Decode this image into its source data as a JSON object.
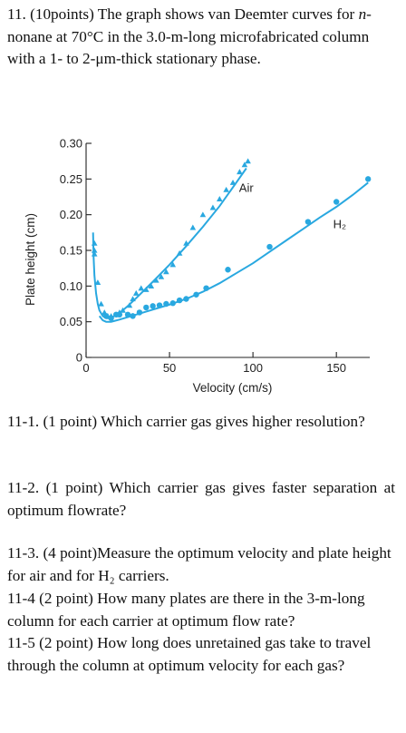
{
  "question": {
    "intro_a": "11. (10points) The graph shows van Deemter curves for ",
    "intro_n": "n",
    "intro_b": "-nonane at 70°C in the 3.0-m-long microfabricated column with a 1- to 2-μm-thick stationary phase.",
    "q1": "11-1. (1 point) Which carrier gas gives higher resolution?",
    "q2": "11-2. (1 point) Which carrier gas gives faster separation at optimum flowrate?",
    "q3": "11-3. (4 point)Measure the optimum velocity and plate height for air and for H₂ carriers.",
    "q4": "11-4 (2 point) How many plates are there in the 3-m-long column for each carrier at optimum flow rate?",
    "q5": "11-5 (2 point) How long does unretained gas take to travel through the column at optimum velocity for each gas?"
  },
  "chart_data": {
    "type": "scatter",
    "xlabel": "Velocity (cm/s)",
    "ylabel": "Plate height (cm)",
    "xlim": [
      0,
      170
    ],
    "ylim": [
      0,
      0.3
    ],
    "xticks": [
      0,
      50,
      100,
      150
    ],
    "yticks": [
      0,
      0.05,
      0.1,
      0.15,
      0.2,
      0.25,
      0.3
    ],
    "ytick_labels": [
      "0",
      "0.05",
      "0.10",
      "0.15",
      "0.20",
      "0.25",
      "0.30"
    ],
    "color": "#29a8e0",
    "series": [
      {
        "name": "Air",
        "marker": "triangle",
        "points": [
          [
            5,
            0.16
          ],
          [
            5,
            0.15
          ],
          [
            5,
            0.145
          ],
          [
            7,
            0.105
          ],
          [
            9,
            0.075
          ],
          [
            11,
            0.063
          ],
          [
            13,
            0.058
          ],
          [
            15,
            0.058
          ],
          [
            18,
            0.06
          ],
          [
            20,
            0.063
          ],
          [
            22,
            0.066
          ],
          [
            26,
            0.073
          ],
          [
            28,
            0.082
          ],
          [
            30,
            0.09
          ],
          [
            33,
            0.097
          ],
          [
            36,
            0.095
          ],
          [
            39,
            0.1
          ],
          [
            42,
            0.108
          ],
          [
            45,
            0.113
          ],
          [
            48,
            0.12
          ],
          [
            52,
            0.13
          ],
          [
            56,
            0.146
          ],
          [
            60,
            0.16
          ],
          [
            64,
            0.182
          ],
          [
            70,
            0.2
          ],
          [
            76,
            0.21
          ],
          [
            80,
            0.222
          ],
          [
            84,
            0.235
          ],
          [
            88,
            0.245
          ],
          [
            92,
            0.26
          ],
          [
            95,
            0.27
          ],
          [
            97,
            0.275
          ]
        ],
        "curve": [
          [
            4.2,
            0.175
          ],
          [
            4.5,
            0.14
          ],
          [
            5,
            0.115
          ],
          [
            6,
            0.09
          ],
          [
            7,
            0.075
          ],
          [
            8,
            0.066
          ],
          [
            10,
            0.058
          ],
          [
            12,
            0.055
          ],
          [
            14,
            0.055
          ],
          [
            16,
            0.057
          ],
          [
            20,
            0.062
          ],
          [
            25,
            0.072
          ],
          [
            30,
            0.083
          ],
          [
            40,
            0.106
          ],
          [
            50,
            0.13
          ],
          [
            60,
            0.156
          ],
          [
            70,
            0.183
          ],
          [
            80,
            0.212
          ],
          [
            90,
            0.245
          ],
          [
            96,
            0.265
          ]
        ]
      },
      {
        "name": "H₂",
        "marker": "circle",
        "points": [
          [
            12,
            0.058
          ],
          [
            15,
            0.055
          ],
          [
            18,
            0.06
          ],
          [
            20,
            0.06
          ],
          [
            25,
            0.06
          ],
          [
            28,
            0.058
          ],
          [
            32,
            0.063
          ],
          [
            36,
            0.07
          ],
          [
            40,
            0.072
          ],
          [
            44,
            0.073
          ],
          [
            48,
            0.075
          ],
          [
            52,
            0.076
          ],
          [
            56,
            0.08
          ],
          [
            60,
            0.082
          ],
          [
            66,
            0.088
          ],
          [
            72,
            0.097
          ],
          [
            85,
            0.123
          ],
          [
            110,
            0.155
          ],
          [
            133,
            0.19
          ],
          [
            150,
            0.218
          ],
          [
            169,
            0.25
          ]
        ],
        "curve": [
          [
            8,
            0.058
          ],
          [
            10,
            0.052
          ],
          [
            12,
            0.05
          ],
          [
            15,
            0.05
          ],
          [
            20,
            0.053
          ],
          [
            30,
            0.06
          ],
          [
            40,
            0.067
          ],
          [
            50,
            0.074
          ],
          [
            60,
            0.082
          ],
          [
            70,
            0.092
          ],
          [
            80,
            0.104
          ],
          [
            90,
            0.118
          ],
          [
            100,
            0.132
          ],
          [
            110,
            0.148
          ],
          [
            120,
            0.164
          ],
          [
            130,
            0.18
          ],
          [
            140,
            0.196
          ],
          [
            150,
            0.211
          ],
          [
            160,
            0.228
          ],
          [
            169,
            0.245
          ]
        ]
      }
    ]
  }
}
